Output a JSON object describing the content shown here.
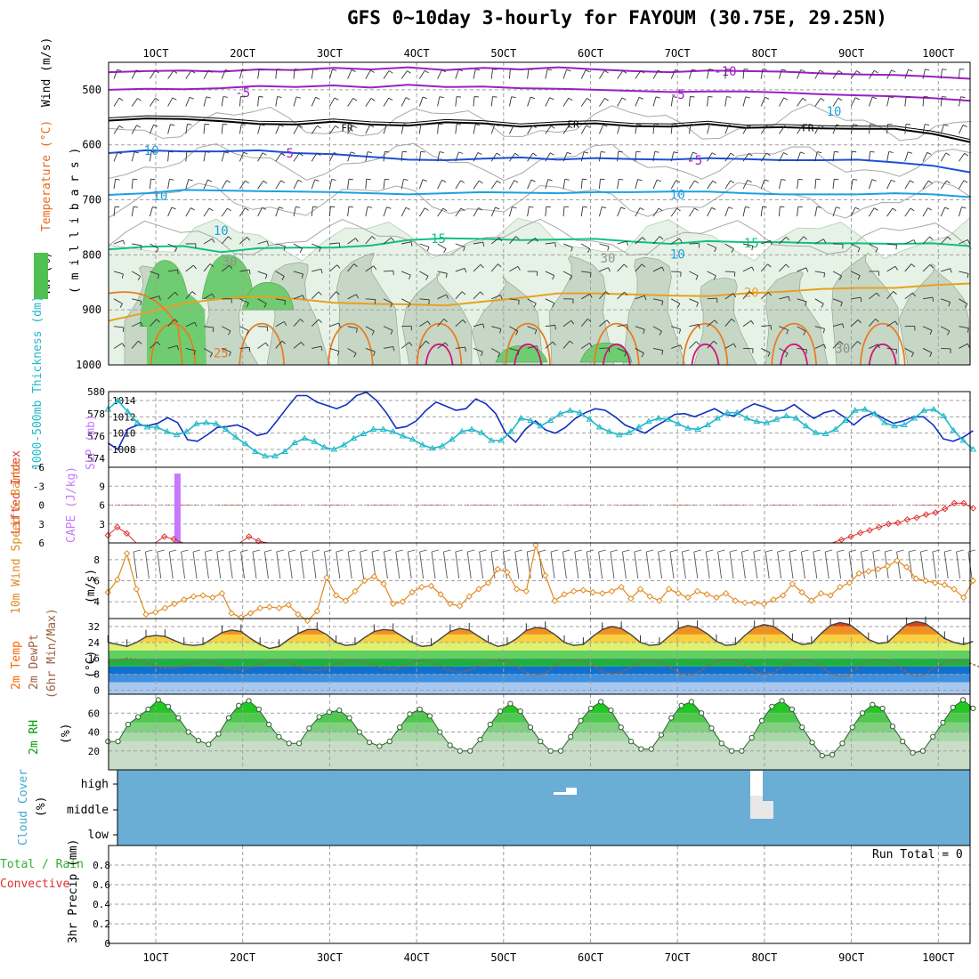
{
  "title": "GFS 0~10day 3-hourly for FAYOUM (30.75E, 29.25N)",
  "run_total": "Run Total = 0",
  "days": [
    "1OCT",
    "2OCT",
    "3OCT",
    "4OCT",
    "5OCT",
    "6OCT",
    "7OCT",
    "8OCT",
    "9OCT",
    "10OCT"
  ],
  "colors": {
    "sfc_rh": "#00c800",
    "temp": "#ff6400",
    "wind": "#e08a20",
    "cape": "#c878ff",
    "li": "#e03030",
    "slp": "#1030c0",
    "thick": "#20b8c8",
    "cloud": "#6aaed6",
    "axis": "#000000"
  },
  "chart_data": [
    {
      "id": "upper-air",
      "type": "contour",
      "ylabel_parts": [
        "RH (%)",
        "Temperature (°C)",
        "Wind (m/s)"
      ],
      "ylabel2": "( m i l l i b a r s )",
      "yticks": [
        500,
        600,
        700,
        800,
        900,
        1000
      ],
      "ylim": [
        1000,
        450
      ],
      "contour_labels": [
        {
          "text": "-10",
          "day": 7.55,
          "p": 466
        },
        {
          "text": "-5",
          "day": 2.0,
          "p": 505
        },
        {
          "text": "-5",
          "day": 7.0,
          "p": 508
        },
        {
          "text": "FR",
          "day": 3.2,
          "p": 567
        },
        {
          "text": "FR",
          "day": 5.8,
          "p": 561
        },
        {
          "text": "FR",
          "day": 8.5,
          "p": 567
        },
        {
          "text": "-5",
          "day": 2.5,
          "p": 615
        },
        {
          "text": "-5",
          "day": 7.2,
          "p": 628
        },
        {
          "text": "10",
          "day": 1.05,
          "p": 693
        },
        {
          "text": "10",
          "day": 7.0,
          "p": 690
        },
        {
          "text": "15",
          "day": 4.25,
          "p": 770
        },
        {
          "text": "15",
          "day": 7.85,
          "p": 778
        },
        {
          "text": "20",
          "day": 7.85,
          "p": 868
        },
        {
          "text": "25",
          "day": 1.75,
          "p": 978
        },
        {
          "text": "10",
          "day": 0.95,
          "p": 610
        },
        {
          "text": "10",
          "day": 1.75,
          "p": 756
        },
        {
          "text": "10",
          "day": 7.0,
          "p": 799
        },
        {
          "text": "30",
          "day": 1.85,
          "p": 812
        },
        {
          "text": "30",
          "day": 6.2,
          "p": 806
        },
        {
          "text": "10",
          "day": 8.8,
          "p": 539
        },
        {
          "text": "30",
          "day": 8.9,
          "p": 970
        }
      ],
      "contours": [
        {
          "name": "-10",
          "color": "#9b1fc4",
          "p": [
            468,
            466,
            465,
            467,
            463,
            464,
            460,
            463,
            459,
            464,
            460,
            463,
            459,
            463,
            466,
            468,
            465,
            466,
            467,
            470,
            472,
            473,
            476,
            480
          ]
        },
        {
          "name": "-5",
          "color": "#9b1fc4",
          "p": [
            500,
            498,
            499,
            497,
            493,
            495,
            492,
            496,
            491,
            495,
            494,
            497,
            498,
            500,
            502,
            504,
            503,
            503,
            505,
            508,
            510,
            512,
            515,
            520
          ]
        },
        {
          "name": "FR",
          "color": "#000000",
          "p": [
            556,
            552,
            553,
            557,
            562,
            563,
            558,
            563,
            565,
            559,
            561,
            567,
            563,
            561,
            566,
            567,
            562,
            569,
            568,
            570,
            571,
            571,
            580,
            595
          ]
        },
        {
          "name": "-5b",
          "color": "#1c50d8",
          "p": [
            615,
            610,
            612,
            612,
            610,
            615,
            617,
            622,
            627,
            628,
            625,
            623,
            627,
            624,
            626,
            627,
            624,
            626,
            628,
            628,
            627,
            632,
            638,
            650
          ]
        },
        {
          "name": "10",
          "color": "#1ca0e0",
          "p": [
            691,
            688,
            682,
            683,
            684,
            685,
            686,
            688,
            690,
            688,
            686,
            687,
            688,
            686,
            686,
            685,
            685,
            688,
            690,
            690,
            690,
            688,
            690,
            695
          ]
        },
        {
          "name": "15",
          "color": "#10c080",
          "p": [
            790,
            785,
            784,
            795,
            788,
            787,
            787,
            783,
            773,
            770,
            771,
            773,
            772,
            771,
            776,
            780,
            775,
            777,
            777,
            779,
            779,
            780,
            779,
            784
          ]
        },
        {
          "name": "20",
          "color": "#e8a020",
          "p": [
            920,
            905,
            888,
            880,
            875,
            880,
            887,
            889,
            890,
            892,
            885,
            878,
            870,
            870,
            872,
            874,
            875,
            870,
            867,
            862,
            860,
            860,
            855,
            852
          ]
        }
      ]
    },
    {
      "id": "slp-thickness",
      "type": "line",
      "ylabel_left": "1000-500mb Thickness (dm)",
      "ylabel_right": "SLP (mb)",
      "left_ticks": [
        574,
        576,
        578,
        580
      ],
      "right_ticks": [
        1008,
        1010,
        1012,
        1014
      ],
      "series": [
        {
          "name": "SLP",
          "axis": "right",
          "values": [
            1008.8,
            1008.0,
            1010.5,
            1011.0,
            1010.9,
            1011.2,
            1011.9,
            1011.3,
            1009.2,
            1009.0,
            1009.8,
            1010.7,
            1010.8,
            1011.0,
            1010.5,
            1009.7,
            1010.0,
            1011.5,
            1013.1,
            1014.6,
            1014.6,
            1013.8,
            1013.4,
            1013.0,
            1013.5,
            1014.6,
            1015.0,
            1014.0,
            1012.5,
            1010.6,
            1010.8,
            1011.5,
            1012.8,
            1013.8,
            1013.3,
            1012.8,
            1013.0,
            1014.2,
            1013.6,
            1012.4,
            1010.0,
            1008.9,
            1010.5,
            1011.5,
            1010.4,
            1010.0,
            1010.7,
            1011.8,
            1012.5,
            1013.0,
            1012.8,
            1012.0,
            1011.0,
            1010.5,
            1010.0,
            1010.8,
            1011.5,
            1012.3,
            1012.4,
            1012.0,
            1012.5,
            1013.0,
            1012.3,
            1012.1,
            1013.0,
            1013.6,
            1013.2,
            1012.7,
            1012.8,
            1013.5,
            1012.6,
            1011.8,
            1012.5,
            1012.8,
            1012.0,
            1011.0,
            1012.0,
            1012.5,
            1011.8,
            1011.2,
            1011.5,
            1012.0,
            1012.0,
            1011.0,
            1009.3,
            1009.0,
            1009.5,
            1010.3
          ]
        },
        {
          "name": "Thickness",
          "axis": "left",
          "values": [
            578.4,
            579.2,
            578.2,
            577.2,
            576.8,
            576.8,
            576.4,
            576.1,
            576.4,
            577.1,
            577.2,
            577.1,
            576.6,
            575.9,
            575.3,
            574.6,
            574.2,
            574.2,
            574.6,
            575.4,
            575.8,
            575.5,
            575.0,
            574.8,
            575.2,
            575.8,
            576.2,
            576.6,
            576.6,
            576.4,
            576.0,
            575.7,
            575.2,
            574.9,
            575.1,
            575.7,
            576.4,
            576.6,
            576.3,
            575.6,
            575.6,
            576.4,
            577.6,
            577.4,
            576.9,
            577.4,
            578.0,
            578.3,
            578.1,
            577.5,
            576.8,
            576.4,
            576.1,
            576.3,
            576.8,
            577.3,
            577.6,
            577.5,
            577.1,
            576.7,
            576.6,
            577.0,
            577.6,
            578.1,
            578.1,
            577.6,
            577.3,
            577.2,
            577.5,
            577.8,
            577.6,
            576.9,
            576.3,
            576.2,
            576.6,
            577.4,
            578.3,
            578.4,
            578.0,
            577.2,
            576.9,
            577.0,
            577.6,
            578.3,
            578.4,
            577.8,
            576.5,
            575.6,
            574.8
          ]
        }
      ]
    },
    {
      "id": "cape-li",
      "type": "bar+line",
      "ylabel_left": "Lifted Index",
      "ylabel_right": "CAPE (J/kg)",
      "left_ticks": [
        "-6",
        "-3",
        "0",
        "3",
        "6"
      ],
      "right_ticks": [
        3,
        6,
        9
      ],
      "cape_bars": [
        {
          "day": 1.25,
          "value": 11
        }
      ],
      "li_values": [
        4.8,
        3.5,
        4.5,
        6.0,
        6.0,
        6.0,
        5.0,
        5.4,
        6.0,
        6.0,
        6.0,
        6.0,
        6.0,
        6.0,
        6.0,
        5.0,
        5.7,
        6.0,
        6.0,
        6.0,
        6.0,
        6.0,
        6.0,
        6.0,
        6.0,
        6.0,
        6.0,
        6.0,
        6.0,
        6.0,
        6.0,
        6.0,
        6.0,
        6.0,
        6.0,
        6.0,
        6.0,
        6.0,
        6.0,
        6.0,
        6.0,
        6.0,
        6.0,
        6.0,
        6.0,
        6.0,
        6.0,
        6.0,
        6.0,
        6.0,
        6.0,
        6.0,
        6.0,
        6.0,
        6.0,
        6.0,
        6.0,
        6.0,
        6.0,
        6.0,
        6.0,
        6.0,
        6.0,
        6.0,
        6.0,
        6.0,
        6.0,
        6.0,
        6.0,
        6.0,
        6.0,
        6.0,
        6.0,
        6.0,
        6.0,
        6.0,
        6.0,
        6.0,
        5.5,
        5.0,
        4.4,
        4.0,
        3.5,
        3.0,
        2.8,
        2.3,
        2.0,
        1.5,
        1.2,
        0.6,
        -0.3,
        -0.3,
        0.5
      ]
    },
    {
      "id": "wind10m",
      "type": "line",
      "ylabel": "10m Wind Speed & Barbs",
      "yunit": "(m/s)",
      "yticks": [
        4,
        6,
        8
      ],
      "ylim": [
        2.4,
        9.6
      ],
      "values": [
        4.9,
        6.1,
        8.6,
        5.2,
        2.8,
        3.0,
        3.4,
        3.8,
        4.2,
        4.5,
        4.6,
        4.4,
        4.8,
        2.9,
        2.5,
        2.9,
        3.4,
        3.5,
        3.4,
        3.7,
        2.8,
        2.2,
        3.1,
        6.3,
        4.6,
        4.1,
        5.0,
        6.0,
        6.4,
        5.7,
        3.8,
        4.0,
        4.9,
        5.4,
        5.5,
        4.7,
        3.8,
        3.6,
        4.5,
        5.2,
        5.8,
        7.1,
        6.8,
        5.2,
        5.0,
        9.4,
        6.5,
        4.1,
        4.7,
        5.0,
        5.1,
        4.9,
        4.8,
        5.0,
        5.4,
        4.3,
        5.2,
        4.5,
        4.1,
        5.2,
        4.8,
        4.4,
        5.0,
        4.7,
        4.4,
        4.8,
        4.1,
        3.9,
        3.9,
        3.8,
        4.2,
        4.6,
        5.7,
        4.9,
        4.1,
        4.8,
        4.6,
        5.4,
        5.8,
        6.7,
        6.9,
        7.1,
        7.4,
        7.9,
        7.3,
        6.2,
        6.0,
        5.8,
        5.6,
        5.2,
        4.4,
        6.0
      ]
    },
    {
      "id": "temp2m",
      "type": "area",
      "ylabel": "2m Temp 2m DewPt (6hr Min/Max)",
      "yunit": "(°C)",
      "yticks": [
        0,
        8,
        16,
        24,
        32
      ],
      "ylim": [
        -2,
        36
      ],
      "temp_values": [
        24,
        23,
        22,
        24,
        26.8,
        27.5,
        27,
        25,
        23,
        22.5,
        23,
        26,
        29,
        30.2,
        29.5,
        26,
        23,
        21,
        22,
        25.5,
        28.5,
        30.5,
        30.5,
        28,
        24,
        22.5,
        23,
        26.5,
        29.5,
        30.5,
        30,
        27,
        24,
        22,
        22.5,
        26,
        29.5,
        31,
        30.2,
        27,
        24,
        22,
        23,
        26,
        30,
        31.5,
        31,
        28,
        24,
        22.5,
        23,
        27,
        30.5,
        32,
        31,
        28,
        24,
        22.5,
        23,
        27,
        31,
        32.5,
        31.5,
        28.5,
        24.5,
        22.5,
        23,
        27.5,
        31.5,
        33,
        32,
        29,
        25,
        23,
        23.5,
        28.5,
        32.5,
        34,
        33,
        29.5,
        25.5,
        23.5,
        24,
        28.5,
        33,
        34.5,
        33.5,
        30,
        26,
        24,
        23,
        24.5
      ],
      "dew_values": [
        14,
        15,
        16,
        15.5,
        14,
        12,
        11,
        11.5,
        12,
        13.5,
        14.5,
        14,
        12,
        11,
        10.5,
        11.5,
        13,
        14.5,
        15,
        14,
        12,
        10.5,
        10,
        11,
        13,
        14.5,
        15,
        14.2,
        12.5,
        11,
        10.5,
        12,
        14,
        15,
        14.5,
        12,
        9.8,
        9,
        10,
        12.5,
        14.5,
        15,
        14.5,
        12,
        9,
        7.5,
        8.5,
        12,
        14.5,
        15,
        14.5,
        12.5,
        9.5,
        8,
        9,
        11.5,
        14,
        15,
        14.2,
        12,
        9,
        7.5,
        8.5,
        12,
        14.5,
        15.5,
        15,
        12.5,
        9.5,
        8,
        9,
        12,
        14.5,
        15.5,
        15,
        12,
        8.5,
        6.8,
        8,
        12,
        14.5,
        15.5,
        14.8,
        12.5,
        9,
        7,
        8,
        11.5,
        14,
        15,
        14.8,
        13,
        11
      ]
    },
    {
      "id": "rh2m",
      "type": "area",
      "ylabel": "2m RH",
      "yunit": "(%)",
      "yticks": [
        20,
        40,
        60
      ],
      "ylim": [
        0,
        80
      ],
      "values": [
        30,
        30,
        48,
        56,
        64,
        74,
        67,
        55,
        40,
        31,
        27,
        38,
        55,
        68,
        73,
        64,
        48,
        35,
        28,
        28,
        44,
        56,
        61,
        63,
        55,
        40,
        29,
        25,
        30,
        45,
        59,
        64,
        57,
        40,
        26,
        20,
        20,
        32,
        48,
        62,
        70,
        62,
        45,
        30,
        20,
        20,
        35,
        52,
        65,
        72,
        63,
        45,
        30,
        22,
        22,
        37,
        55,
        68,
        72,
        60,
        44,
        28,
        20,
        20,
        34,
        52,
        67,
        73,
        64,
        45,
        29,
        15,
        16,
        28,
        45,
        60,
        69,
        65,
        46,
        30,
        18,
        20,
        35,
        50,
        66,
        74,
        65
      ]
    },
    {
      "id": "cloud",
      "type": "heatmap",
      "ylabel": "Cloud Cover",
      "yunit": "(%)",
      "levels": [
        "high",
        "middle",
        "low"
      ]
    },
    {
      "id": "precip",
      "type": "bar",
      "ylabel_parts": [
        "Total / Rain",
        "Convective"
      ],
      "yunit": "3hr Precip (mm)",
      "yticks": [
        0,
        0.2,
        0.4,
        0.6,
        0.8
      ],
      "ylim": [
        0,
        1
      ],
      "values": []
    }
  ]
}
